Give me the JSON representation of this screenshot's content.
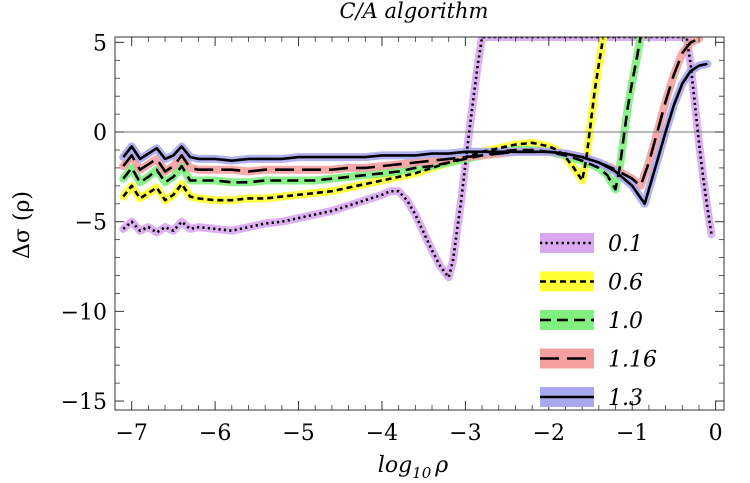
{
  "chart_data": {
    "type": "line",
    "title": "C/A algorithm",
    "xlabel": "log₁₀ ρ",
    "xlabel_main": "log",
    "xlabel_sub": "10",
    "xlabel_var": "ρ",
    "ylabel": "Δσ (ρ)",
    "xlim": [
      -7.2,
      0.1
    ],
    "ylim": [
      -15.5,
      5.3
    ],
    "xticks": [
      -7,
      -6,
      -5,
      -4,
      -3,
      -2,
      -1,
      0
    ],
    "xtick_labels": [
      "−7",
      "−6",
      "−5",
      "−4",
      "−3",
      "−2",
      "−1",
      "0"
    ],
    "yticks": [
      -15,
      -10,
      -5,
      0,
      5
    ],
    "ytick_labels": [
      "−15",
      "−10",
      "−5",
      "0",
      "5"
    ],
    "legend_position": "bottom-right",
    "series": [
      {
        "name": "0.1",
        "dash": "dotted",
        "band_color": "#d9a8f0",
        "points": [
          [
            -7.1,
            -5.4
          ],
          [
            -7.0,
            -5.0
          ],
          [
            -6.9,
            -5.5
          ],
          [
            -6.8,
            -5.3
          ],
          [
            -6.7,
            -5.6
          ],
          [
            -6.6,
            -5.3
          ],
          [
            -6.5,
            -5.5
          ],
          [
            -6.4,
            -5.0
          ],
          [
            -6.3,
            -5.4
          ],
          [
            -6.2,
            -5.3
          ],
          [
            -6.0,
            -5.4
          ],
          [
            -5.8,
            -5.5
          ],
          [
            -5.6,
            -5.3
          ],
          [
            -5.4,
            -5.1
          ],
          [
            -5.2,
            -5.0
          ],
          [
            -5.0,
            -4.8
          ],
          [
            -4.8,
            -4.6
          ],
          [
            -4.6,
            -4.4
          ],
          [
            -4.4,
            -4.1
          ],
          [
            -4.2,
            -3.8
          ],
          [
            -4.0,
            -3.5
          ],
          [
            -3.9,
            -3.3
          ],
          [
            -3.8,
            -3.3
          ],
          [
            -3.7,
            -3.8
          ],
          [
            -3.6,
            -4.6
          ],
          [
            -3.5,
            -5.6
          ],
          [
            -3.4,
            -6.6
          ],
          [
            -3.3,
            -7.5
          ],
          [
            -3.2,
            -8.1
          ],
          [
            -3.15,
            -7.2
          ],
          [
            -3.1,
            -5.5
          ],
          [
            -3.05,
            -3.8
          ],
          [
            -3.0,
            -1.8
          ],
          [
            -2.95,
            0.2
          ],
          [
            -2.9,
            2.0
          ],
          [
            -2.85,
            3.8
          ],
          [
            -2.8,
            5.3
          ],
          [
            -0.35,
            5.3
          ],
          [
            -0.3,
            3.8
          ],
          [
            -0.25,
            1.6
          ],
          [
            -0.2,
            -0.6
          ],
          [
            -0.15,
            -2.5
          ],
          [
            -0.1,
            -4.2
          ],
          [
            -0.05,
            -5.7
          ]
        ]
      },
      {
        "name": "0.6",
        "dash": "short-dash",
        "band_color": "#ffff33",
        "points": [
          [
            -7.1,
            -3.6
          ],
          [
            -7.0,
            -3.0
          ],
          [
            -6.9,
            -3.7
          ],
          [
            -6.8,
            -3.4
          ],
          [
            -6.7,
            -3.1
          ],
          [
            -6.6,
            -3.8
          ],
          [
            -6.5,
            -3.5
          ],
          [
            -6.4,
            -2.9
          ],
          [
            -6.3,
            -3.6
          ],
          [
            -6.2,
            -3.7
          ],
          [
            -6.0,
            -3.8
          ],
          [
            -5.8,
            -3.8
          ],
          [
            -5.6,
            -3.7
          ],
          [
            -5.4,
            -3.7
          ],
          [
            -5.2,
            -3.6
          ],
          [
            -5.0,
            -3.5
          ],
          [
            -4.8,
            -3.4
          ],
          [
            -4.6,
            -3.3
          ],
          [
            -4.4,
            -3.1
          ],
          [
            -4.2,
            -2.9
          ],
          [
            -4.0,
            -2.7
          ],
          [
            -3.8,
            -2.5
          ],
          [
            -3.6,
            -2.3
          ],
          [
            -3.4,
            -2.0
          ],
          [
            -3.2,
            -1.7
          ],
          [
            -3.0,
            -1.4
          ],
          [
            -2.8,
            -1.1
          ],
          [
            -2.6,
            -0.9
          ],
          [
            -2.4,
            -0.7
          ],
          [
            -2.2,
            -0.6
          ],
          [
            -2.0,
            -0.8
          ],
          [
            -1.9,
            -1.0
          ],
          [
            -1.8,
            -1.4
          ],
          [
            -1.7,
            -2.0
          ],
          [
            -1.6,
            -2.7
          ],
          [
            -1.55,
            -1.5
          ],
          [
            -1.5,
            0.4
          ],
          [
            -1.45,
            2.3
          ],
          [
            -1.4,
            3.8
          ],
          [
            -1.35,
            5.2
          ]
        ]
      },
      {
        "name": "1.0",
        "dash": "medium-dash",
        "band_color": "#80f080",
        "points": [
          [
            -7.1,
            -2.6
          ],
          [
            -7.0,
            -2.0
          ],
          [
            -6.9,
            -2.8
          ],
          [
            -6.8,
            -2.5
          ],
          [
            -6.7,
            -2.1
          ],
          [
            -6.6,
            -2.8
          ],
          [
            -6.5,
            -2.5
          ],
          [
            -6.4,
            -1.9
          ],
          [
            -6.3,
            -2.7
          ],
          [
            -6.2,
            -2.7
          ],
          [
            -6.0,
            -2.7
          ],
          [
            -5.8,
            -2.8
          ],
          [
            -5.6,
            -2.8
          ],
          [
            -5.4,
            -2.7
          ],
          [
            -5.2,
            -2.7
          ],
          [
            -5.0,
            -2.7
          ],
          [
            -4.8,
            -2.7
          ],
          [
            -4.6,
            -2.6
          ],
          [
            -4.4,
            -2.5
          ],
          [
            -4.2,
            -2.4
          ],
          [
            -4.0,
            -2.3
          ],
          [
            -3.8,
            -2.2
          ],
          [
            -3.6,
            -2.0
          ],
          [
            -3.4,
            -1.9
          ],
          [
            -3.2,
            -1.7
          ],
          [
            -3.0,
            -1.5
          ],
          [
            -2.8,
            -1.3
          ],
          [
            -2.6,
            -1.1
          ],
          [
            -2.4,
            -1.0
          ],
          [
            -2.2,
            -1.0
          ],
          [
            -2.0,
            -1.1
          ],
          [
            -1.8,
            -1.3
          ],
          [
            -1.6,
            -1.6
          ],
          [
            -1.4,
            -2.0
          ],
          [
            -1.3,
            -2.4
          ],
          [
            -1.2,
            -3.2
          ],
          [
            -1.15,
            -2.0
          ],
          [
            -1.1,
            -0.2
          ],
          [
            -1.05,
            1.5
          ],
          [
            -1.0,
            2.8
          ],
          [
            -0.95,
            4.0
          ],
          [
            -0.9,
            5.3
          ]
        ]
      },
      {
        "name": "1.16",
        "dash": "long-dash",
        "band_color": "#f4a0a0",
        "points": [
          [
            -7.1,
            -1.9
          ],
          [
            -7.0,
            -1.3
          ],
          [
            -6.9,
            -2.1
          ],
          [
            -6.8,
            -1.8
          ],
          [
            -6.7,
            -1.5
          ],
          [
            -6.6,
            -2.2
          ],
          [
            -6.5,
            -1.9
          ],
          [
            -6.4,
            -1.3
          ],
          [
            -6.3,
            -2.0
          ],
          [
            -6.2,
            -2.1
          ],
          [
            -6.0,
            -2.1
          ],
          [
            -5.8,
            -2.1
          ],
          [
            -5.6,
            -2.2
          ],
          [
            -5.4,
            -2.1
          ],
          [
            -5.2,
            -2.1
          ],
          [
            -5.0,
            -2.1
          ],
          [
            -4.8,
            -2.1
          ],
          [
            -4.6,
            -2.1
          ],
          [
            -4.4,
            -2.0
          ],
          [
            -4.2,
            -2.0
          ],
          [
            -4.0,
            -1.9
          ],
          [
            -3.8,
            -1.8
          ],
          [
            -3.6,
            -1.7
          ],
          [
            -3.4,
            -1.6
          ],
          [
            -3.2,
            -1.5
          ],
          [
            -3.0,
            -1.4
          ],
          [
            -2.8,
            -1.3
          ],
          [
            -2.6,
            -1.2
          ],
          [
            -2.4,
            -1.1
          ],
          [
            -2.2,
            -1.1
          ],
          [
            -2.0,
            -1.1
          ],
          [
            -1.8,
            -1.2
          ],
          [
            -1.6,
            -1.4
          ],
          [
            -1.4,
            -1.7
          ],
          [
            -1.2,
            -2.1
          ],
          [
            -1.0,
            -2.6
          ],
          [
            -0.9,
            -3.0
          ],
          [
            -0.8,
            -1.7
          ],
          [
            -0.7,
            0.0
          ],
          [
            -0.6,
            1.7
          ],
          [
            -0.5,
            3.2
          ],
          [
            -0.4,
            4.4
          ],
          [
            -0.3,
            5.0
          ],
          [
            -0.2,
            5.2
          ]
        ]
      },
      {
        "name": "1.3",
        "dash": "solid",
        "band_color": "#a8a8f0",
        "points": [
          [
            -7.1,
            -1.4
          ],
          [
            -7.0,
            -0.8
          ],
          [
            -6.9,
            -1.5
          ],
          [
            -6.8,
            -1.2
          ],
          [
            -6.7,
            -0.9
          ],
          [
            -6.6,
            -1.5
          ],
          [
            -6.5,
            -1.3
          ],
          [
            -6.4,
            -0.8
          ],
          [
            -6.3,
            -1.4
          ],
          [
            -6.2,
            -1.5
          ],
          [
            -6.0,
            -1.5
          ],
          [
            -5.8,
            -1.6
          ],
          [
            -5.6,
            -1.5
          ],
          [
            -5.4,
            -1.5
          ],
          [
            -5.2,
            -1.5
          ],
          [
            -5.0,
            -1.4
          ],
          [
            -4.8,
            -1.4
          ],
          [
            -4.6,
            -1.4
          ],
          [
            -4.4,
            -1.4
          ],
          [
            -4.2,
            -1.4
          ],
          [
            -4.0,
            -1.3
          ],
          [
            -3.8,
            -1.3
          ],
          [
            -3.6,
            -1.3
          ],
          [
            -3.4,
            -1.2
          ],
          [
            -3.2,
            -1.2
          ],
          [
            -3.0,
            -1.1
          ],
          [
            -2.8,
            -1.1
          ],
          [
            -2.6,
            -1.1
          ],
          [
            -2.4,
            -1.1
          ],
          [
            -2.2,
            -1.1
          ],
          [
            -2.0,
            -1.1
          ],
          [
            -1.8,
            -1.2
          ],
          [
            -1.6,
            -1.4
          ],
          [
            -1.4,
            -1.7
          ],
          [
            -1.2,
            -2.2
          ],
          [
            -1.0,
            -3.0
          ],
          [
            -0.85,
            -4.0
          ],
          [
            -0.8,
            -3.2
          ],
          [
            -0.7,
            -1.6
          ],
          [
            -0.6,
            0.0
          ],
          [
            -0.5,
            1.5
          ],
          [
            -0.4,
            2.7
          ],
          [
            -0.3,
            3.4
          ],
          [
            -0.2,
            3.7
          ],
          [
            -0.1,
            3.8
          ]
        ]
      }
    ]
  }
}
